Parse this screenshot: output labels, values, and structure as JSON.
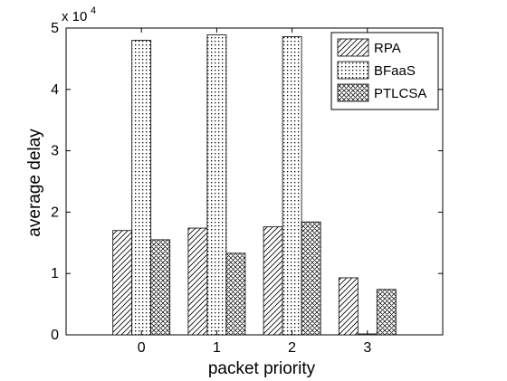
{
  "chart_data": {
    "type": "bar",
    "categories": [
      "0",
      "1",
      "2",
      "3"
    ],
    "x": [
      0,
      1,
      2,
      3
    ],
    "xlim": [
      -1,
      4
    ],
    "ylim": [
      0,
      50000
    ],
    "yticks": [
      0,
      10000,
      20000,
      30000,
      40000,
      50000
    ],
    "ytick_labels": [
      "0",
      "1",
      "2",
      "3",
      "4",
      "5"
    ],
    "y_multiplier_label": "x 10",
    "y_multiplier_exp": "4",
    "xlabel": "packet priority",
    "ylabel": "average delay",
    "legend_position": "top-right",
    "grid": false,
    "series": [
      {
        "name": "RPA",
        "pattern": "diagonal-hatch",
        "values": [
          17000,
          17400,
          17600,
          9300
        ]
      },
      {
        "name": "BFaaS",
        "pattern": "dots",
        "values": [
          48000,
          48900,
          48600,
          150
        ]
      },
      {
        "name": "PTLCSA",
        "pattern": "crosshatch",
        "values": [
          15500,
          13300,
          18400,
          7400
        ]
      }
    ]
  }
}
